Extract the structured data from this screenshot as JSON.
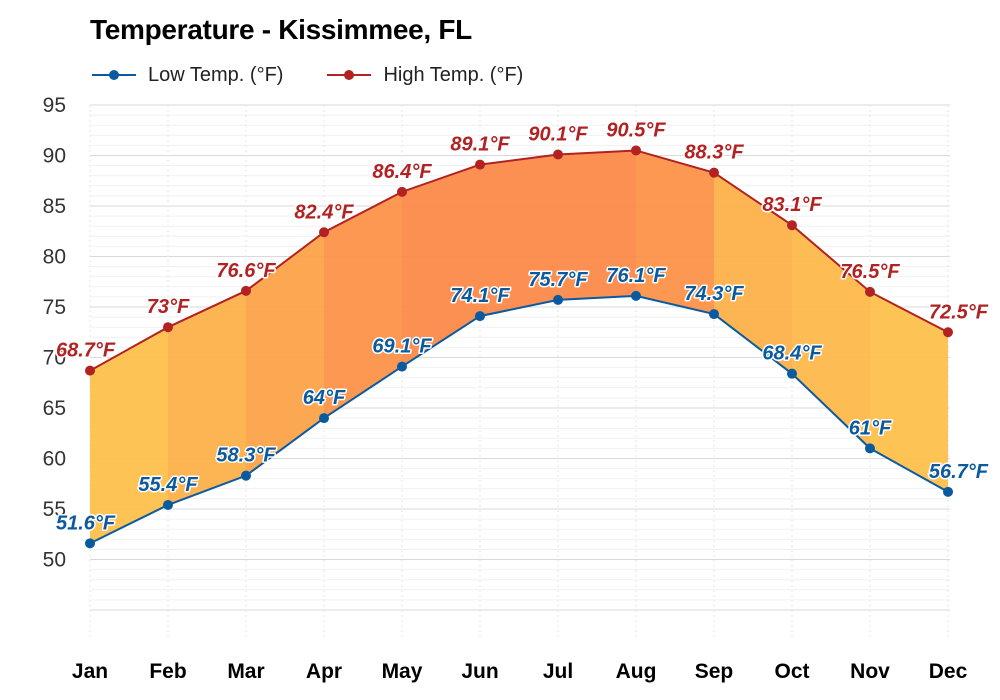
{
  "chart_data": {
    "type": "area",
    "title": "Temperature - Kissimmee, FL",
    "xlabel": "",
    "ylabel": "",
    "categories": [
      "Jan",
      "Feb",
      "Mar",
      "Apr",
      "May",
      "Jun",
      "Jul",
      "Aug",
      "Sep",
      "Oct",
      "Nov",
      "Dec"
    ],
    "y_ticks": [
      "95",
      "90",
      "85",
      "80",
      "75",
      "70",
      "65",
      "60",
      "55",
      "50"
    ],
    "ylim": [
      45,
      95
    ],
    "grid": true,
    "legend_position": "top-left",
    "series": [
      {
        "name": "Low Temp. (°F)",
        "color": "#0a5aa0",
        "values": [
          51.6,
          55.4,
          58.3,
          64,
          69.1,
          74.1,
          75.7,
          76.1,
          74.3,
          68.4,
          61,
          56.7
        ],
        "labels": [
          "51.6°F",
          "55.4°F",
          "58.3°F",
          "64°F",
          "69.1°F",
          "74.1°F",
          "75.7°F",
          "76.1°F",
          "74.3°F",
          "68.4°F",
          "61°F",
          "56.7°F"
        ]
      },
      {
        "name": "High Temp. (°F)",
        "color": "#b22222",
        "values": [
          68.7,
          73,
          76.6,
          82.4,
          86.4,
          89.1,
          90.1,
          90.5,
          88.3,
          83.1,
          76.5,
          72.5
        ],
        "labels": [
          "68.7°F",
          "73°F",
          "76.6°F",
          "82.4°F",
          "86.4°F",
          "89.1°F",
          "90.1°F",
          "90.5°F",
          "88.3°F",
          "83.1°F",
          "76.5°F",
          "72.5°F"
        ]
      }
    ],
    "band_fill_colors": [
      "#fdc14c",
      "#fdb04a",
      "#fca34a",
      "#fc9249",
      "#fc8a4a",
      "#fc8a4a",
      "#fc8a4a",
      "#fc9249",
      "#fdb04a",
      "#fdb94b",
      "#fdc14c"
    ]
  }
}
